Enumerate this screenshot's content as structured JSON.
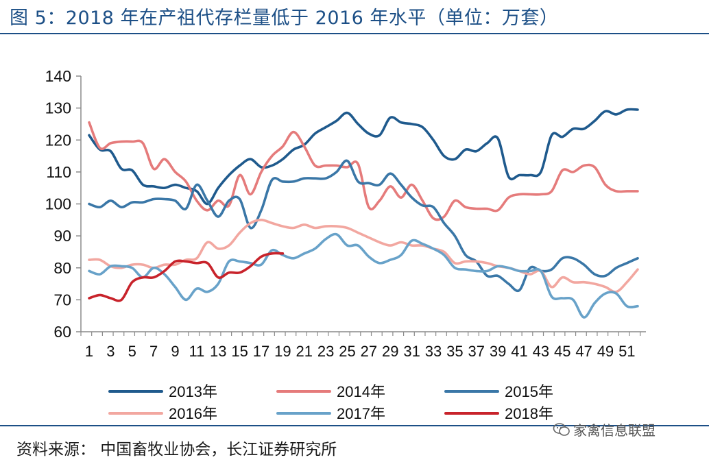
{
  "title": "图  5：2018 年在产祖代存栏量低于 2016 年水平（单位：万套）",
  "source": "资料来源：  中国畜牧业协会，长江证券研究所",
  "watermark": "家禽信息联盟",
  "colors": {
    "title": "#1c4f86",
    "s2013": "#1f5a8d",
    "s2014": "#e57b7b",
    "s2015": "#3a77a7",
    "s2016": "#f2a7a0",
    "s2017": "#68a2c9",
    "s2018": "#c8232b"
  },
  "chart_data": {
    "type": "line",
    "xlabel": "",
    "ylabel": "",
    "ylim": [
      60,
      140
    ],
    "yticks": [
      60,
      70,
      80,
      90,
      100,
      110,
      120,
      130,
      140
    ],
    "xlim": [
      1,
      52
    ],
    "xticks": [
      1,
      3,
      5,
      7,
      9,
      11,
      13,
      15,
      17,
      19,
      21,
      23,
      25,
      27,
      29,
      31,
      33,
      35,
      37,
      39,
      41,
      43,
      45,
      47,
      49,
      51
    ],
    "x_tick_labels": [
      "1",
      "3",
      "5",
      "7",
      "9",
      "11",
      "13",
      "15",
      "17",
      "19",
      "21",
      "23",
      "25",
      "27",
      "29",
      "31",
      "33",
      "35",
      "37",
      "39",
      "41",
      "43",
      "45",
      "47",
      "49",
      "51"
    ],
    "grid": false,
    "legend_position": "bottom",
    "series": [
      {
        "name": "2013年",
        "color": "#1f5a8d",
        "x": [
          1,
          2,
          3,
          4,
          5,
          6,
          7,
          8,
          9,
          10,
          11,
          12,
          13,
          14,
          15,
          16,
          17,
          18,
          19,
          20,
          21,
          22,
          23,
          24,
          25,
          26,
          27,
          28,
          29,
          30,
          31,
          32,
          33,
          34,
          35,
          36,
          37,
          38,
          39,
          40,
          41,
          42,
          43,
          44,
          45,
          46,
          47,
          48,
          49,
          50,
          51,
          52
        ],
        "values": [
          121.5,
          117,
          116.5,
          111,
          110.5,
          106,
          105.5,
          105,
          106,
          105,
          104,
          100,
          105,
          109,
          112,
          114,
          111.5,
          112,
          114,
          117,
          118.5,
          122,
          124,
          126,
          128.5,
          125,
          122,
          121.5,
          127,
          125.5,
          125,
          124,
          120,
          115,
          114,
          117,
          116.5,
          119,
          120.5,
          108.5,
          109,
          109,
          110,
          121.5,
          121,
          123.5,
          123.5,
          126,
          129,
          128,
          129.5,
          129.5
        ]
      },
      {
        "name": "2014年",
        "color": "#e57b7b",
        "x": [
          1,
          2,
          3,
          4,
          5,
          6,
          7,
          8,
          9,
          10,
          11,
          12,
          13,
          14,
          15,
          16,
          17,
          18,
          19,
          20,
          21,
          22,
          23,
          24,
          25,
          26,
          27,
          28,
          29,
          30,
          31,
          32,
          33,
          34,
          35,
          36,
          37,
          38,
          39,
          40,
          41,
          42,
          43,
          44,
          45,
          46,
          47,
          48,
          49,
          50,
          51,
          52
        ],
        "values": [
          125.5,
          117.5,
          119,
          119.5,
          119.5,
          119,
          111,
          114,
          110,
          107,
          101,
          98,
          101,
          99.5,
          109,
          103,
          110,
          115,
          118,
          122.5,
          118,
          112,
          112,
          112,
          111.5,
          112.5,
          99,
          101,
          105.5,
          102,
          106,
          101,
          95.5,
          96,
          101,
          99,
          98.5,
          98.5,
          98,
          102,
          103,
          103,
          103,
          104,
          110.5,
          110,
          112,
          111.5,
          106,
          104,
          104,
          104
        ]
      },
      {
        "name": "2015年",
        "color": "#3a77a7",
        "x": [
          1,
          2,
          3,
          4,
          5,
          6,
          7,
          8,
          9,
          10,
          11,
          12,
          13,
          14,
          15,
          16,
          17,
          18,
          19,
          20,
          21,
          22,
          23,
          24,
          25,
          26,
          27,
          28,
          29,
          30,
          31,
          32,
          33,
          34,
          35,
          36,
          37,
          38,
          39,
          40,
          41,
          42,
          43,
          44,
          45,
          46,
          47,
          48,
          49,
          50,
          51,
          52
        ],
        "values": [
          100,
          99,
          101,
          99,
          100.5,
          100.5,
          101.5,
          101.5,
          101,
          98.5,
          106,
          101,
          96,
          101,
          101.5,
          92.5,
          98,
          107.5,
          107,
          107,
          108,
          108,
          108,
          110,
          113.5,
          107,
          106.5,
          106,
          109.5,
          106,
          102,
          99.5,
          99,
          94,
          90,
          84,
          82,
          77.5,
          77.5,
          75,
          73,
          80,
          79,
          79.5,
          83,
          83,
          81,
          78,
          77.5,
          80,
          81.5,
          83
        ]
      },
      {
        "name": "2016年",
        "color": "#f2a7a0",
        "x": [
          1,
          2,
          3,
          4,
          5,
          6,
          7,
          8,
          9,
          10,
          11,
          12,
          13,
          14,
          15,
          16,
          17,
          18,
          19,
          20,
          21,
          22,
          23,
          24,
          25,
          26,
          27,
          28,
          29,
          30,
          31,
          32,
          33,
          34,
          35,
          36,
          37,
          38,
          39,
          40,
          41,
          42,
          43,
          44,
          45,
          46,
          47,
          48,
          49,
          50,
          51,
          52
        ],
        "values": [
          82.5,
          82.5,
          80.5,
          80,
          81,
          81,
          80,
          81,
          81,
          82.5,
          83,
          88,
          86,
          87,
          91,
          94,
          95,
          94,
          93,
          92.5,
          93.5,
          92.5,
          93,
          93,
          92.5,
          91,
          89.5,
          88,
          87,
          88,
          87,
          87,
          86,
          85,
          81.5,
          82,
          82,
          81.5,
          80.5,
          80,
          79,
          78,
          79,
          74,
          77,
          75.5,
          75.5,
          75,
          74,
          72.5,
          75.5,
          79.5
        ]
      },
      {
        "name": "2017年",
        "color": "#68a2c9",
        "x": [
          1,
          2,
          3,
          4,
          5,
          6,
          7,
          8,
          9,
          10,
          11,
          12,
          13,
          14,
          15,
          16,
          17,
          18,
          19,
          20,
          21,
          22,
          23,
          24,
          25,
          26,
          27,
          28,
          29,
          30,
          31,
          32,
          33,
          34,
          35,
          36,
          37,
          38,
          39,
          40,
          41,
          42,
          43,
          44,
          45,
          46,
          47,
          48,
          49,
          50,
          51,
          52
        ],
        "values": [
          79,
          78,
          80.5,
          80.5,
          80,
          77,
          80,
          78,
          74,
          70,
          73.5,
          72.5,
          75,
          82,
          82,
          81.5,
          81,
          85.5,
          84,
          83,
          84.5,
          86,
          89,
          90.5,
          87,
          87,
          83.5,
          81.5,
          82.5,
          84,
          88.5,
          87.5,
          86,
          84,
          80,
          79.5,
          79,
          79,
          80.5,
          80,
          79,
          79,
          79,
          71,
          70.5,
          70,
          64.5,
          69,
          72,
          72,
          68,
          68
        ]
      },
      {
        "name": "2018年",
        "color": "#c8232b",
        "x": [
          1,
          2,
          3,
          4,
          5,
          6,
          7,
          8,
          9,
          10,
          11,
          12,
          13,
          14,
          15,
          16,
          17,
          18,
          19
        ],
        "values": [
          70.5,
          71.5,
          70.5,
          70,
          75.5,
          77,
          77,
          79,
          82,
          82,
          81.5,
          81.5,
          77,
          78.5,
          78.5,
          80.5,
          83.5,
          84.5,
          84.5
        ]
      }
    ]
  }
}
